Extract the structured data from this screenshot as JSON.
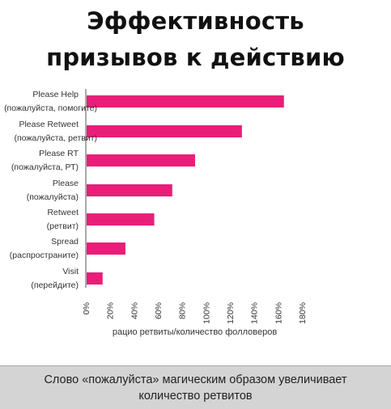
{
  "title_line1": "Эффективность",
  "title_line2": "призывов к действию",
  "colors": {
    "bar": "#e91e78",
    "text": "#333333",
    "axis": "#555555"
  },
  "chart_data": {
    "type": "bar",
    "orientation": "horizontal",
    "categories": [
      {
        "label": "Please Help",
        "sublabel": "(пожалуйста, помогите)"
      },
      {
        "label": "Please Retweet",
        "sublabel": "(пожалуйста, ретвит)"
      },
      {
        "label": "Please RT",
        "sublabel": "(пожалуйста, РТ)"
      },
      {
        "label": "Please",
        "sublabel": "(пожалуйста)"
      },
      {
        "label": "Retweet",
        "sublabel": "(ретвит)"
      },
      {
        "label": "Spread",
        "sublabel": "(распространите)"
      },
      {
        "label": "Visit",
        "sublabel": "(перейдите)"
      }
    ],
    "values": [
      165,
      130,
      91,
      72,
      57,
      33,
      14
    ],
    "xlim": [
      0,
      180
    ],
    "xticks": [
      "0%",
      "20%",
      "40%",
      "60%",
      "80%",
      "100%",
      "120%",
      "140%",
      "160%",
      "180%"
    ],
    "xlabel": "рацио ретвиты/количество фолловеров",
    "grid": false
  },
  "footer": {
    "text": "Слово «пожалуйста» магическим образом увеличивает количество ретвитов"
  }
}
